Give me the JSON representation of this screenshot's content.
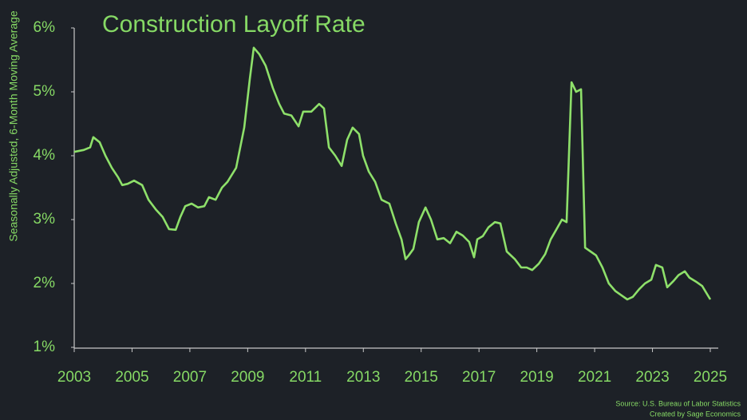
{
  "chart_data": {
    "type": "line",
    "title": "Construction Layoff Rate",
    "y_label": "Seasonally Adjusted, 6-Month Moving Average",
    "source": "Source: U.S. Bureau of Labor Statistics",
    "credit": "Created by Sage Economics",
    "x": [
      2003.0,
      2003.33,
      2003.55,
      2003.66,
      2003.88,
      2004.08,
      2004.3,
      2004.52,
      2004.66,
      2004.85,
      2005.07,
      2005.35,
      2005.57,
      2005.82,
      2006.06,
      2006.28,
      2006.51,
      2006.67,
      2006.84,
      2007.06,
      2007.28,
      2007.5,
      2007.66,
      2007.89,
      2008.11,
      2008.3,
      2008.6,
      2008.88,
      2009.07,
      2009.21,
      2009.4,
      2009.62,
      2009.87,
      2010.09,
      2010.26,
      2010.51,
      2010.76,
      2010.92,
      2011.2,
      2011.47,
      2011.64,
      2011.81,
      2012.03,
      2012.25,
      2012.44,
      2012.63,
      2012.85,
      2012.99,
      2013.19,
      2013.41,
      2013.63,
      2013.9,
      2014.12,
      2014.32,
      2014.46,
      2014.57,
      2014.73,
      2014.92,
      2015.15,
      2015.34,
      2015.56,
      2015.78,
      2016.0,
      2016.22,
      2016.44,
      2016.66,
      2016.83,
      2016.94,
      2017.13,
      2017.33,
      2017.55,
      2017.74,
      2017.96,
      2018.24,
      2018.46,
      2018.65,
      2018.84,
      2019.07,
      2019.29,
      2019.48,
      2019.67,
      2019.87,
      2020.03,
      2020.2,
      2020.36,
      2020.53,
      2020.67,
      2020.86,
      2021.05,
      2021.27,
      2021.49,
      2021.72,
      2021.94,
      2022.13,
      2022.32,
      2022.54,
      2022.74,
      2022.96,
      2023.12,
      2023.34,
      2023.51,
      2023.73,
      2023.9,
      2024.12,
      2024.28,
      2024.5,
      2024.72,
      2025.0
    ],
    "series": [
      {
        "name": "Construction Layoff Rate",
        "color": "#8ee06a",
        "values": [
          4.06,
          4.09,
          4.13,
          4.29,
          4.21,
          4.0,
          3.81,
          3.66,
          3.54,
          3.56,
          3.61,
          3.54,
          3.31,
          3.16,
          3.04,
          2.85,
          2.84,
          3.04,
          3.21,
          3.25,
          3.19,
          3.21,
          3.35,
          3.31,
          3.5,
          3.59,
          3.81,
          4.44,
          5.19,
          5.69,
          5.59,
          5.41,
          5.06,
          4.81,
          4.66,
          4.63,
          4.46,
          4.69,
          4.69,
          4.81,
          4.74,
          4.13,
          4.0,
          3.84,
          4.25,
          4.44,
          4.34,
          4.0,
          3.75,
          3.59,
          3.31,
          3.25,
          2.94,
          2.69,
          2.38,
          2.44,
          2.54,
          2.96,
          3.19,
          3.0,
          2.69,
          2.71,
          2.63,
          2.81,
          2.75,
          2.65,
          2.41,
          2.69,
          2.74,
          2.88,
          2.96,
          2.94,
          2.5,
          2.38,
          2.25,
          2.25,
          2.21,
          2.31,
          2.46,
          2.69,
          2.84,
          3.0,
          2.96,
          5.15,
          5.0,
          5.04,
          2.56,
          2.5,
          2.44,
          2.25,
          2.0,
          1.88,
          1.81,
          1.75,
          1.79,
          1.91,
          2.0,
          2.06,
          2.29,
          2.25,
          1.94,
          2.04,
          2.13,
          2.19,
          2.09,
          2.03,
          1.96,
          1.75
        ]
      }
    ],
    "xlim": [
      2003,
      2025
    ],
    "xticks": [
      2003,
      2005,
      2007,
      2009,
      2011,
      2013,
      2015,
      2017,
      2019,
      2021,
      2023,
      2025
    ],
    "ylim": [
      1,
      6
    ],
    "yticks": [
      {
        "value": 1,
        "label": "1%"
      },
      {
        "value": 2,
        "label": "2%"
      },
      {
        "value": 3,
        "label": "3%"
      },
      {
        "value": 4,
        "label": "4%"
      },
      {
        "value": 5,
        "label": "5%"
      },
      {
        "value": 6,
        "label": "6%"
      }
    ],
    "grid": false
  }
}
